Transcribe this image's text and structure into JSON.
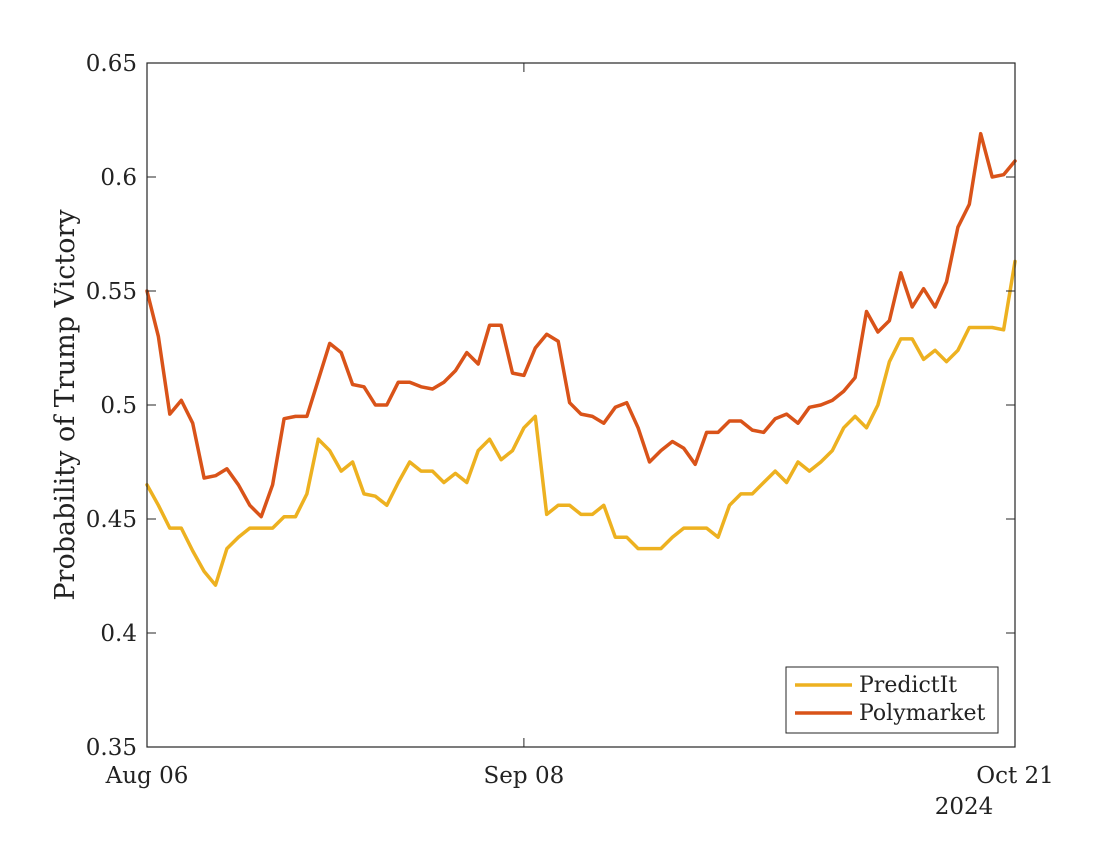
{
  "chart_data": {
    "type": "line",
    "title": "",
    "xlabel": "",
    "ylabel": "Probability of Trump Victory",
    "year_label": "2024",
    "x_ticks": [
      "Aug 06",
      "Sep 08",
      "Oct 21"
    ],
    "x_range": [
      "2024-08-06",
      "2024-10-21"
    ],
    "ylim": [
      0.35,
      0.65
    ],
    "y_ticks": [
      0.35,
      0.4,
      0.45,
      0.5,
      0.55,
      0.6,
      0.65
    ],
    "y_tick_labels": [
      "0.35",
      "0.4",
      "0.45",
      "0.5",
      "0.55",
      "0.6",
      "0.65"
    ],
    "grid": false,
    "legend_position": "bottom-right",
    "series": [
      {
        "name": "PredictIt",
        "color": "#EDB120",
        "points": [
          [
            "2024-08-06",
            0.465
          ],
          [
            "2024-08-07",
            0.456
          ],
          [
            "2024-08-08",
            0.446
          ],
          [
            "2024-08-09",
            0.446
          ],
          [
            "2024-08-10",
            0.436
          ],
          [
            "2024-08-11",
            0.427
          ],
          [
            "2024-08-12",
            0.421
          ],
          [
            "2024-08-13",
            0.437
          ],
          [
            "2024-08-14",
            0.442
          ],
          [
            "2024-08-15",
            0.446
          ],
          [
            "2024-08-16",
            0.446
          ],
          [
            "2024-08-17",
            0.446
          ],
          [
            "2024-08-18",
            0.451
          ],
          [
            "2024-08-19",
            0.451
          ],
          [
            "2024-08-20",
            0.461
          ],
          [
            "2024-08-21",
            0.485
          ],
          [
            "2024-08-22",
            0.48
          ],
          [
            "2024-08-23",
            0.471
          ],
          [
            "2024-08-24",
            0.475
          ],
          [
            "2024-08-25",
            0.461
          ],
          [
            "2024-08-26",
            0.46
          ],
          [
            "2024-08-27",
            0.456
          ],
          [
            "2024-08-28",
            0.466
          ],
          [
            "2024-08-29",
            0.475
          ],
          [
            "2024-08-30",
            0.471
          ],
          [
            "2024-08-31",
            0.471
          ],
          [
            "2024-09-01",
            0.466
          ],
          [
            "2024-09-02",
            0.47
          ],
          [
            "2024-09-03",
            0.466
          ],
          [
            "2024-09-04",
            0.48
          ],
          [
            "2024-09-05",
            0.485
          ],
          [
            "2024-09-06",
            0.476
          ],
          [
            "2024-09-07",
            0.48
          ],
          [
            "2024-09-08",
            0.49
          ],
          [
            "2024-09-09",
            0.495
          ],
          [
            "2024-09-10",
            0.452
          ],
          [
            "2024-09-11",
            0.456
          ],
          [
            "2024-09-12",
            0.456
          ],
          [
            "2024-09-13",
            0.452
          ],
          [
            "2024-09-14",
            0.452
          ],
          [
            "2024-09-15",
            0.456
          ],
          [
            "2024-09-16",
            0.442
          ],
          [
            "2024-09-17",
            0.442
          ],
          [
            "2024-09-18",
            0.437
          ],
          [
            "2024-09-19",
            0.437
          ],
          [
            "2024-09-20",
            0.437
          ],
          [
            "2024-09-21",
            0.442
          ],
          [
            "2024-09-22",
            0.446
          ],
          [
            "2024-09-23",
            0.446
          ],
          [
            "2024-09-24",
            0.446
          ],
          [
            "2024-09-25",
            0.442
          ],
          [
            "2024-09-26",
            0.456
          ],
          [
            "2024-09-27",
            0.461
          ],
          [
            "2024-09-28",
            0.461
          ],
          [
            "2024-09-29",
            0.466
          ],
          [
            "2024-09-30",
            0.471
          ],
          [
            "2024-10-01",
            0.466
          ],
          [
            "2024-10-02",
            0.475
          ],
          [
            "2024-10-03",
            0.471
          ],
          [
            "2024-10-04",
            0.475
          ],
          [
            "2024-10-05",
            0.48
          ],
          [
            "2024-10-06",
            0.49
          ],
          [
            "2024-10-07",
            0.495
          ],
          [
            "2024-10-08",
            0.49
          ],
          [
            "2024-10-09",
            0.5
          ],
          [
            "2024-10-10",
            0.519
          ],
          [
            "2024-10-11",
            0.529
          ],
          [
            "2024-10-12",
            0.529
          ],
          [
            "2024-10-13",
            0.52
          ],
          [
            "2024-10-14",
            0.524
          ],
          [
            "2024-10-15",
            0.519
          ],
          [
            "2024-10-16",
            0.524
          ],
          [
            "2024-10-17",
            0.534
          ],
          [
            "2024-10-18",
            0.534
          ],
          [
            "2024-10-19",
            0.534
          ],
          [
            "2024-10-20",
            0.533
          ],
          [
            "2024-10-21",
            0.563
          ]
        ]
      },
      {
        "name": "Polymarket",
        "color": "#D95319",
        "points": [
          [
            "2024-08-06",
            0.55
          ],
          [
            "2024-08-07",
            0.53
          ],
          [
            "2024-08-08",
            0.496
          ],
          [
            "2024-08-09",
            0.502
          ],
          [
            "2024-08-10",
            0.492
          ],
          [
            "2024-08-11",
            0.468
          ],
          [
            "2024-08-12",
            0.469
          ],
          [
            "2024-08-13",
            0.472
          ],
          [
            "2024-08-14",
            0.465
          ],
          [
            "2024-08-15",
            0.456
          ],
          [
            "2024-08-16",
            0.451
          ],
          [
            "2024-08-17",
            0.465
          ],
          [
            "2024-08-18",
            0.494
          ],
          [
            "2024-08-19",
            0.495
          ],
          [
            "2024-08-20",
            0.495
          ],
          [
            "2024-08-21",
            0.511
          ],
          [
            "2024-08-22",
            0.527
          ],
          [
            "2024-08-23",
            0.523
          ],
          [
            "2024-08-24",
            0.509
          ],
          [
            "2024-08-25",
            0.508
          ],
          [
            "2024-08-26",
            0.5
          ],
          [
            "2024-08-27",
            0.5
          ],
          [
            "2024-08-28",
            0.51
          ],
          [
            "2024-08-29",
            0.51
          ],
          [
            "2024-08-30",
            0.508
          ],
          [
            "2024-08-31",
            0.507
          ],
          [
            "2024-09-01",
            0.51
          ],
          [
            "2024-09-02",
            0.515
          ],
          [
            "2024-09-03",
            0.523
          ],
          [
            "2024-09-04",
            0.518
          ],
          [
            "2024-09-05",
            0.535
          ],
          [
            "2024-09-06",
            0.535
          ],
          [
            "2024-09-07",
            0.514
          ],
          [
            "2024-09-08",
            0.513
          ],
          [
            "2024-09-09",
            0.525
          ],
          [
            "2024-09-10",
            0.531
          ],
          [
            "2024-09-11",
            0.528
          ],
          [
            "2024-09-12",
            0.501
          ],
          [
            "2024-09-13",
            0.496
          ],
          [
            "2024-09-14",
            0.495
          ],
          [
            "2024-09-15",
            0.492
          ],
          [
            "2024-09-16",
            0.499
          ],
          [
            "2024-09-17",
            0.501
          ],
          [
            "2024-09-18",
            0.49
          ],
          [
            "2024-09-19",
            0.475
          ],
          [
            "2024-09-20",
            0.48
          ],
          [
            "2024-09-21",
            0.484
          ],
          [
            "2024-09-22",
            0.481
          ],
          [
            "2024-09-23",
            0.474
          ],
          [
            "2024-09-24",
            0.488
          ],
          [
            "2024-09-25",
            0.488
          ],
          [
            "2024-09-26",
            0.493
          ],
          [
            "2024-09-27",
            0.493
          ],
          [
            "2024-09-28",
            0.489
          ],
          [
            "2024-09-29",
            0.488
          ],
          [
            "2024-09-30",
            0.494
          ],
          [
            "2024-10-01",
            0.496
          ],
          [
            "2024-10-02",
            0.492
          ],
          [
            "2024-10-03",
            0.499
          ],
          [
            "2024-10-04",
            0.5
          ],
          [
            "2024-10-05",
            0.502
          ],
          [
            "2024-10-06",
            0.506
          ],
          [
            "2024-10-07",
            0.512
          ],
          [
            "2024-10-08",
            0.541
          ],
          [
            "2024-10-09",
            0.532
          ],
          [
            "2024-10-10",
            0.537
          ],
          [
            "2024-10-11",
            0.558
          ],
          [
            "2024-10-12",
            0.543
          ],
          [
            "2024-10-13",
            0.551
          ],
          [
            "2024-10-14",
            0.543
          ],
          [
            "2024-10-15",
            0.554
          ],
          [
            "2024-10-16",
            0.578
          ],
          [
            "2024-10-17",
            0.588
          ],
          [
            "2024-10-18",
            0.619
          ],
          [
            "2024-10-19",
            0.6
          ],
          [
            "2024-10-20",
            0.601
          ],
          [
            "2024-10-21",
            0.607
          ]
        ]
      }
    ]
  }
}
